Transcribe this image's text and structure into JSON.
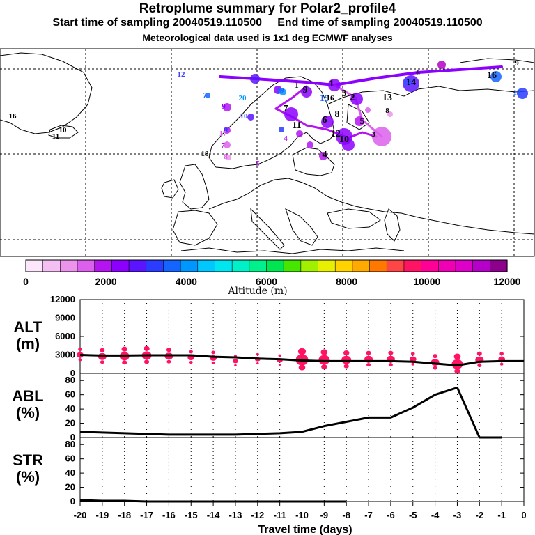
{
  "header": {
    "title": "Retroplume summary for Polar2_profile4",
    "start": "Start time of sampling 20040519.110500",
    "end": "End time of sampling 20040519.110500",
    "met": "Meteorological data used is 1x1 deg ECMWF analyses"
  },
  "colorbar": {
    "ticks": [
      "0",
      "2000",
      "4000",
      "6000",
      "8000",
      "10000",
      "12000"
    ],
    "label": "Altitude (m)",
    "colors": [
      "#fce6fc",
      "#f4c0f4",
      "#ec94ec",
      "#dc60ec",
      "#b414f0",
      "#8c00ff",
      "#5a14ff",
      "#2a3cff",
      "#1464ff",
      "#0096ff",
      "#00c8ff",
      "#00e6f0",
      "#00f0c8",
      "#00f08c",
      "#00e650",
      "#46e600",
      "#a0f000",
      "#e6f000",
      "#ffd200",
      "#ffaa00",
      "#ff7800",
      "#ff4646",
      "#ff1464",
      "#ff0096",
      "#f000b4",
      "#dc00c8",
      "#b400c8",
      "#8c008c"
    ]
  },
  "map": {
    "labels": [
      {
        "t": "12",
        "c": "#4040ff"
      },
      {
        "t": "16",
        "c": "#000"
      },
      {
        "t": "10",
        "c": "#000"
      },
      {
        "t": "11",
        "c": "#000"
      },
      {
        "t": "7",
        "c": "#1464ff"
      },
      {
        "t": "20",
        "c": "#0096ff"
      },
      {
        "t": "9",
        "c": "#8c00ff"
      },
      {
        "t": "10",
        "c": "#2a3cff"
      },
      {
        "t": "8",
        "c": "#2a3cff"
      },
      {
        "t": "17",
        "c": "#dc60ec"
      },
      {
        "t": "7",
        "c": "#b414f0"
      },
      {
        "t": "18",
        "c": "#000"
      },
      {
        "t": "8",
        "c": "#dc60ec"
      },
      {
        "t": "5",
        "c": "#b414f0"
      },
      {
        "t": "4",
        "c": "#b414f0"
      },
      {
        "t": "19",
        "c": "#1464ff"
      },
      {
        "t": "1",
        "c": "#000"
      },
      {
        "t": "2",
        "c": "#000"
      },
      {
        "t": "3",
        "c": "#000"
      },
      {
        "t": "4",
        "c": "#000"
      },
      {
        "t": "5",
        "c": "#000"
      },
      {
        "t": "6",
        "c": "#000"
      },
      {
        "t": "7",
        "c": "#000"
      },
      {
        "t": "8",
        "c": "#000"
      },
      {
        "t": "9",
        "c": "#000"
      },
      {
        "t": "10",
        "c": "#000"
      },
      {
        "t": "11",
        "c": "#000"
      },
      {
        "t": "12",
        "c": "#000"
      },
      {
        "t": "13",
        "c": "#000"
      },
      {
        "t": "14",
        "c": "#000"
      },
      {
        "t": "15",
        "c": "#1464ff"
      },
      {
        "t": "16",
        "c": "#000"
      },
      {
        "t": "18",
        "c": "#1464ff"
      },
      {
        "t": "9",
        "c": "#000"
      },
      {
        "t": "13",
        "c": "#1464ff"
      },
      {
        "t": "3",
        "c": "#000"
      },
      {
        "t": "6",
        "c": "#000"
      },
      {
        "t": "1",
        "c": "#000"
      },
      {
        "t": "8",
        "c": "#000"
      },
      {
        "t": "16",
        "c": "#000"
      }
    ]
  },
  "chart_data": [
    {
      "type": "line",
      "name": "ALT",
      "ylabel": "ALT\n(m)",
      "ylim": [
        0,
        12000
      ],
      "yticks": [
        0,
        3000,
        6000,
        9000,
        12000
      ],
      "x": [
        -20,
        -19,
        -18,
        -17,
        -16,
        -15,
        -14,
        -13,
        -12,
        -11,
        -10,
        -9,
        -8,
        -7,
        -6,
        -5,
        -4,
        -3,
        -2,
        -1,
        0
      ],
      "values": [
        3000,
        2900,
        2900,
        2950,
        2950,
        2950,
        2700,
        2600,
        2400,
        2300,
        2100,
        2000,
        2000,
        2000,
        2000,
        1900,
        1600,
        1300,
        1900,
        2000,
        2000
      ]
    },
    {
      "type": "line",
      "name": "ABL",
      "ylabel": "ABL\n(%)",
      "ylim": [
        0,
        90
      ],
      "yticks": [
        0,
        20,
        40,
        60,
        80
      ],
      "x": [
        -20,
        -19,
        -18,
        -17,
        -16,
        -15,
        -14,
        -13,
        -12,
        -11,
        -10,
        -9,
        -8,
        -7,
        -6,
        -5,
        -4,
        -3,
        -2,
        -1
      ],
      "values": [
        8,
        7,
        6,
        5,
        4,
        4,
        4,
        4,
        5,
        6,
        8,
        16,
        22,
        28,
        28,
        42,
        60,
        70,
        0,
        0
      ]
    },
    {
      "type": "line",
      "name": "STR",
      "ylabel": "STR\n(%)",
      "ylim": [
        0,
        90
      ],
      "yticks": [
        0,
        20,
        40,
        60,
        80
      ],
      "x": [
        -20,
        -19,
        -18,
        -17,
        -16,
        -15,
        -14,
        -13,
        -12,
        -11,
        -10,
        -9,
        -8
      ],
      "values": [
        2,
        1,
        1,
        0,
        0,
        0,
        0,
        0,
        0,
        0,
        0,
        0,
        0
      ]
    }
  ],
  "xaxis": {
    "ticks": [
      "-20",
      "-19",
      "-18",
      "-17",
      "-16",
      "-15",
      "-14",
      "-13",
      "-12",
      "-11",
      "-10",
      "-9",
      "-8",
      "-7",
      "-6",
      "-5",
      "-4",
      "-3",
      "-2",
      "-1",
      "0"
    ],
    "label": "Travel time (days)"
  }
}
